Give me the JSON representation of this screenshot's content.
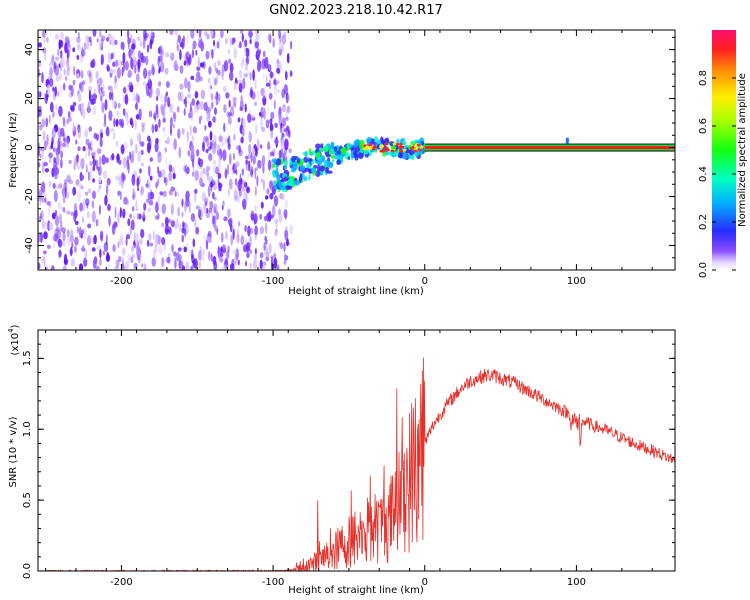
{
  "title": "GN02.2023.218.10.42.R17",
  "chart_data": [
    {
      "type": "heatmap",
      "xlabel": "Height of straight line (km)",
      "ylabel": "Frequency (Hz)",
      "xlim": [
        -255,
        165
      ],
      "ylim": [
        -50,
        48
      ],
      "xticks": [
        -200,
        -100,
        0,
        100
      ],
      "xtick_labels": [
        "-200",
        "-100",
        "0",
        "100"
      ],
      "yticks": [
        -40,
        -20,
        0,
        20,
        40
      ],
      "ytick_labels": [
        "-40",
        "-20",
        "0",
        "20",
        "40"
      ],
      "noise_region": {
        "x": [
          -255,
          -88
        ],
        "y": [
          -50,
          48
        ]
      },
      "transition_trace": [
        {
          "x": -100,
          "y": -11
        },
        {
          "x": -90,
          "y": -12
        },
        {
          "x": -80,
          "y": -7
        },
        {
          "x": -70,
          "y": -5
        },
        {
          "x": -60,
          "y": -4
        },
        {
          "x": -50,
          "y": -2
        },
        {
          "x": -40,
          "y": 0
        },
        {
          "x": -30,
          "y": 1
        },
        {
          "x": -20,
          "y": 0
        },
        {
          "x": -10,
          "y": -1
        },
        {
          "x": 0,
          "y": 0
        }
      ],
      "stable_line": {
        "x": [
          0,
          165
        ],
        "y": 0
      },
      "colorbar": {
        "label": "Normalized spectral amplitude",
        "range": [
          0,
          1
        ],
        "ticks": [
          0.0,
          0.2,
          0.4,
          0.6,
          0.8
        ],
        "tick_labels": [
          "0.0",
          "0.2",
          "0.4",
          "0.6",
          "0.8"
        ]
      }
    },
    {
      "type": "line",
      "xlabel": "Height of straight line (km)",
      "ylabel": "SNR (10 * v/v)",
      "multiplier": "(x10",
      "multiplier_exp": "4",
      "xlim": [
        -255,
        165
      ],
      "ylim": [
        0,
        1.7
      ],
      "xticks": [
        -200,
        -100,
        0,
        100
      ],
      "xtick_labels": [
        "-200",
        "-100",
        "0",
        "100"
      ],
      "yticks": [
        0.0,
        0.5,
        1.0,
        1.5
      ],
      "ytick_labels": [
        "0.0",
        "0.5",
        "1.0",
        "1.5"
      ],
      "color": "#e8302a",
      "series": [
        {
          "x": [
            -255,
            -150,
            -100,
            -90,
            -80,
            -70,
            -60,
            -55,
            -50,
            -45,
            -40,
            -35,
            -30,
            -25,
            -20,
            -15,
            -10,
            -5,
            0,
            5,
            10,
            15,
            20,
            25,
            30,
            35,
            40,
            45,
            50,
            60,
            70,
            80,
            90,
            100,
            110,
            120,
            130,
            140,
            150,
            165
          ],
          "y": [
            0.0,
            0.0,
            0.0,
            0.005,
            0.02,
            0.06,
            0.12,
            0.16,
            0.19,
            0.22,
            0.25,
            0.27,
            0.28,
            0.32,
            0.38,
            0.5,
            0.6,
            0.72,
            0.9,
            1.02,
            1.1,
            1.18,
            1.24,
            1.3,
            1.34,
            1.36,
            1.38,
            1.38,
            1.36,
            1.32,
            1.26,
            1.2,
            1.14,
            1.08,
            1.03,
            0.99,
            0.94,
            0.89,
            0.85,
            0.78
          ]
        }
      ]
    }
  ]
}
